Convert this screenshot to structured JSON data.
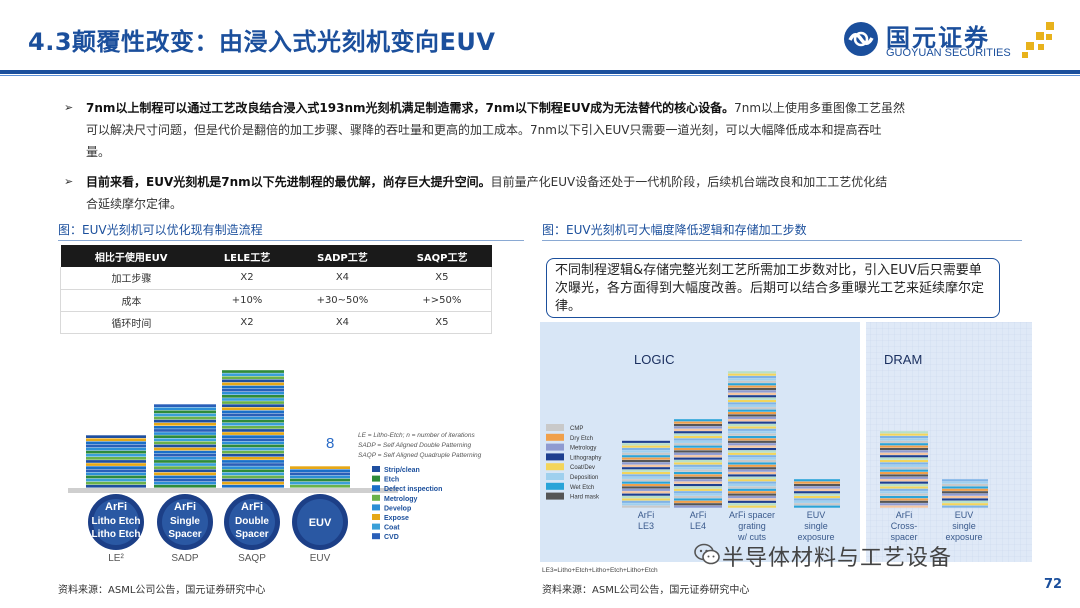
{
  "header": {
    "title": "4.3颠覆性改变：由浸入式光刻机变向EUV",
    "logo_cn": "国元证券",
    "logo_en": "GUOYUAN SECURITIES"
  },
  "bullets": [
    {
      "bold": "7nm以上制程可以通过工艺改良结合浸入式193nm光刻机满足制造需求，7nm以下制程EUV成为无法替代的核心设备。",
      "line1_rest": "7nm以上使用多重图像工艺虽然",
      "line2": "可以解决尺寸问题，但是代价是翻倍的加工步骤、骤降的吞吐量和更高的加工成本。7nm以下引入EUV只需要一道光刻，可以大幅降低成本和提高吞吐",
      "line3": "量。"
    },
    {
      "bold": "目前来看，EUV光刻机是7nm以下先进制程的最优解，尚存巨大提升空间。",
      "line1_rest": "目前量产化EUV设备还处于一代机阶段，后续机台端改良和加工工艺优化结",
      "line2": "合延续摩尔定律。"
    }
  ],
  "left_figure": {
    "caption": "图：EUV光刻机可以优化现有制造流程",
    "table": {
      "headers": [
        "相比于使用EUV",
        "LELE工艺",
        "SADP工艺",
        "SAQP工艺"
      ],
      "rows": [
        [
          "加工步骤",
          "X2",
          "X4",
          "X5"
        ],
        [
          "成本",
          "+10%",
          "+30~50%",
          "+>50%"
        ],
        [
          "循环时间",
          "X2",
          "X4",
          "X5"
        ]
      ]
    },
    "stack_number": "8",
    "wafers": [
      {
        "lines": [
          "ArFi",
          "Litho Etch",
          "Litho Etch"
        ],
        "label": "LE²"
      },
      {
        "lines": [
          "ArFi",
          "Single",
          "Spacer"
        ],
        "label": "SADP"
      },
      {
        "lines": [
          "ArFi",
          "Double",
          "Spacer"
        ],
        "label": "SAQP"
      },
      {
        "lines": [
          "EUV"
        ],
        "label": "EUV"
      }
    ],
    "notes": [
      "LE = Litho-Etch; n = number of iterations",
      "SADP = Self Aligned Double Patterning",
      "SAQP = Self Aligned Quadruple Patterning"
    ],
    "legend": [
      {
        "label": "Strip/clean",
        "color": "#1f4fa0"
      },
      {
        "label": "Etch",
        "color": "#2e8b3a"
      },
      {
        "label": "Defect inspection",
        "color": "#1a6fc8"
      },
      {
        "label": "Metrology",
        "color": "#6bb24a"
      },
      {
        "label": "Develop",
        "color": "#2c8fd6"
      },
      {
        "label": "Expose",
        "color": "#e6a817"
      },
      {
        "label": "Coat",
        "color": "#3aa0d8"
      },
      {
        "label": "CVD",
        "color": "#2a5fb8"
      }
    ]
  },
  "right_figure": {
    "caption": "图：EUV光刻机可大幅度降低逻辑和存储加工步数",
    "callout": "不同制程逻辑&存储完整光刻工艺所需加工步数对比，引入EUV后只需要单次曝光，各方面得到大幅度改善。后期可以结合多重曝光工艺来延续摩尔定律。",
    "panel_logic": "LOGIC",
    "panel_dram": "DRAM",
    "legend": [
      {
        "label": "CMP",
        "color": "#c9c9c9"
      },
      {
        "label": "Dry Etch",
        "color": "#f0a04b"
      },
      {
        "label": "Metrology",
        "color": "#8f9bd1"
      },
      {
        "label": "Lithography",
        "color": "#1e3f8f"
      },
      {
        "label": "Coat/Dev",
        "color": "#f3d55b"
      },
      {
        "label": "Deposition",
        "color": "#9fd0ee"
      },
      {
        "label": "Wet Etch",
        "color": "#2aa4d8"
      },
      {
        "label": "Hard mask",
        "color": "#555555"
      }
    ],
    "bars": [
      {
        "label": [
          "ArFi",
          "LE3"
        ]
      },
      {
        "label": [
          "ArFi",
          "LE4"
        ]
      },
      {
        "label": [
          "ArFi spacer",
          "grating",
          "w/ cuts"
        ]
      },
      {
        "label": [
          "EUV",
          "single",
          "exposure"
        ]
      },
      {
        "label": [
          "ArFi",
          "Cross-",
          "spacer"
        ]
      },
      {
        "label": [
          "EUV",
          "single",
          "exposure"
        ]
      }
    ],
    "footnote": "LE3=Litho+Etch+Litho+Etch+Litho+Etch"
  },
  "footer": {
    "left_source": "资料来源：ASML公司公告，国元证券研究中心",
    "right_source": "资料来源：ASML公司公告，国元证券研究中心",
    "watermark": "半导体材料与工艺设备",
    "page_number": "72"
  }
}
